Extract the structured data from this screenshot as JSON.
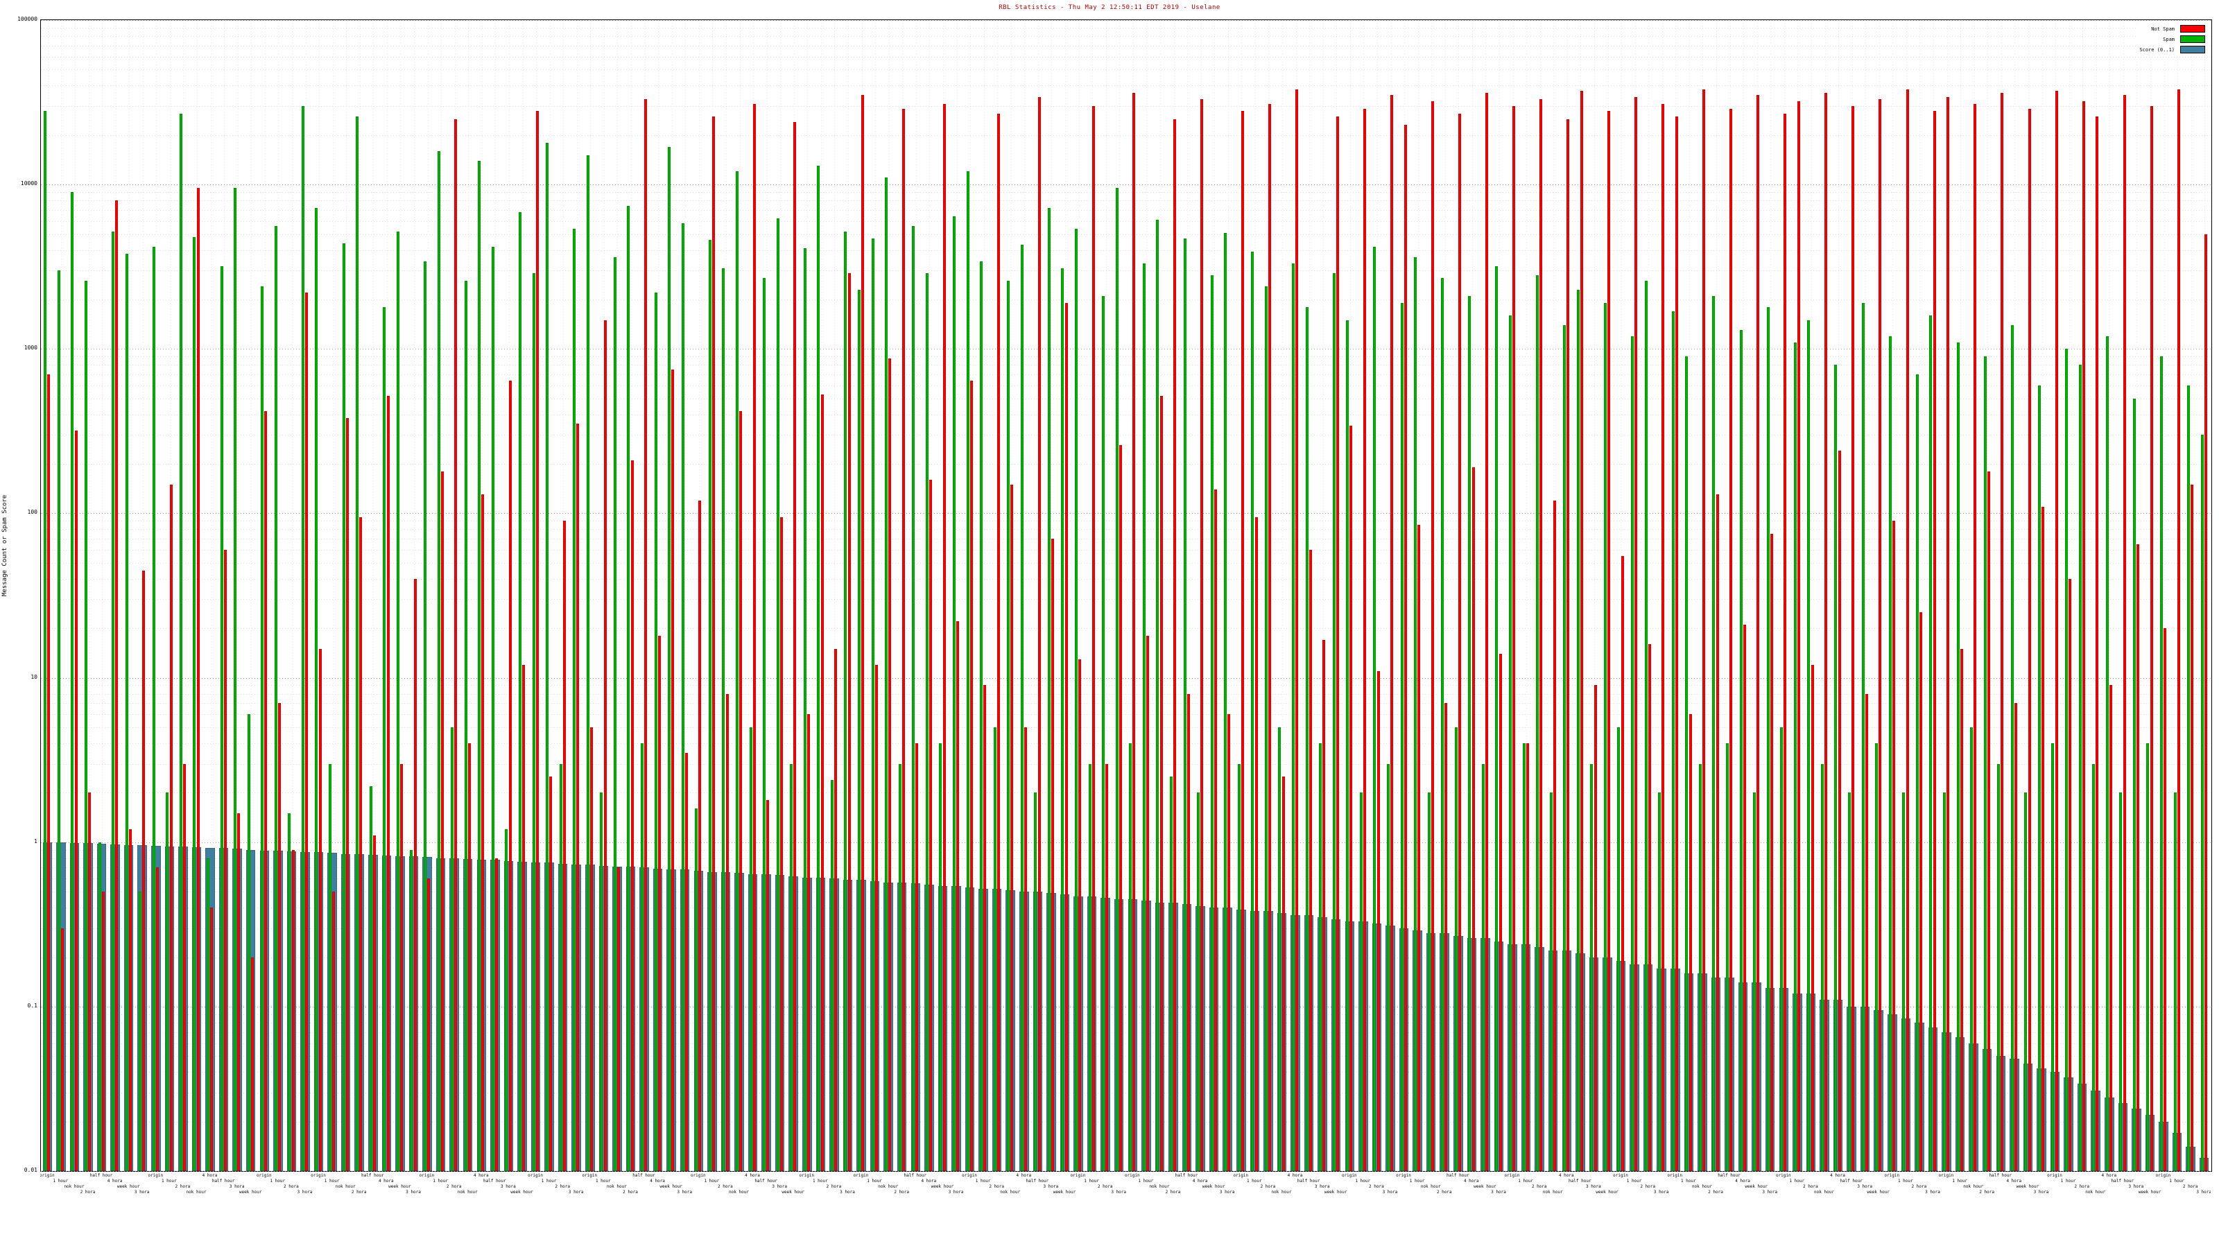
{
  "title": "RBL Statistics - Thu May  2 12:50:11 EDT 2019 - Uselane",
  "legend": [
    {
      "label": "Not Spam",
      "color": "#ff0000"
    },
    {
      "label": "Spam",
      "color": "#00b400"
    },
    {
      "label": "Score (0..1)",
      "color": "#3f7f9f"
    }
  ],
  "chart_data": {
    "type": "bar",
    "title": "RBL Statistics - Thu May  2 12:50:11 EDT 2019 - Uselane",
    "xlabel": "",
    "ylabel": "Message Count or Spam Score",
    "y_scale": "log",
    "ylim": [
      0.01,
      100000
    ],
    "grid": true,
    "legend_position": "top-right",
    "y_tick_labels": [
      "100000",
      "10000",
      "1000",
      "100",
      "10",
      "1",
      "0.1",
      "0.01"
    ],
    "y_tick_values": [
      100000,
      10000,
      1000,
      100,
      10,
      1,
      0.1,
      0.01
    ],
    "categories": [
      "origin",
      "1 hour",
      "nok hour",
      "2 hora",
      "half hour",
      "4 hora",
      "week hour",
      "3 hora",
      "origin",
      "1 hour",
      "2 hora",
      "nok hour",
      "4 hora",
      "half hour",
      "3 hora",
      "week hour",
      "origin",
      "1 hour",
      "2 hora",
      "3 hora",
      "origin",
      "1 hour",
      "nok hour",
      "2 hora",
      "half hour",
      "4 hora",
      "week hour",
      "3 hora",
      "origin",
      "1 hour",
      "2 hora",
      "nok hour",
      "4 hora",
      "half hour",
      "3 hora",
      "week hour",
      "origin",
      "1 hour",
      "2 hora",
      "3 hora",
      "origin",
      "1 hour",
      "nok hour",
      "2 hora",
      "half hour",
      "4 hora",
      "week hour",
      "3 hora",
      "origin",
      "1 hour",
      "2 hora",
      "nok hour",
      "4 hora",
      "half hour",
      "3 hora",
      "week hour",
      "origin",
      "1 hour",
      "2 hora",
      "3 hora",
      "origin",
      "1 hour",
      "nok hour",
      "2 hora",
      "half hour",
      "4 hora",
      "week hour",
      "3 hora",
      "origin",
      "1 hour",
      "2 hora",
      "nok hour",
      "4 hora",
      "half hour",
      "3 hora",
      "week hour",
      "origin",
      "1 hour",
      "2 hora",
      "3 hora",
      "origin",
      "1 hour",
      "nok hour",
      "2 hora",
      "half hour",
      "4 hora",
      "week hour",
      "3 hora",
      "origin",
      "1 hour",
      "2 hora",
      "nok hour",
      "4 hora",
      "half hour",
      "3 hora",
      "week hour",
      "origin",
      "1 hour",
      "2 hora",
      "3 hora",
      "origin",
      "1 hour",
      "nok hour",
      "2 hora",
      "half hour",
      "4 hora",
      "week hour",
      "3 hora",
      "origin",
      "1 hour",
      "2 hora",
      "nok hour",
      "4 hora",
      "half hour",
      "3 hora",
      "week hour",
      "origin",
      "1 hour",
      "2 hora",
      "3 hora",
      "origin",
      "1 hour",
      "nok hour",
      "2 hora",
      "half hour",
      "4 hora",
      "week hour",
      "3 hora",
      "origin",
      "1 hour",
      "2 hora",
      "nok hour",
      "4 hora",
      "half hour",
      "3 hora",
      "week hour",
      "origin",
      "1 hour",
      "2 hora",
      "3 hora",
      "origin",
      "1 hour",
      "nok hour",
      "2 hora",
      "half hour",
      "4 hora",
      "week hour",
      "3 hora",
      "origin",
      "1 hour",
      "2 hora",
      "nok hour",
      "4 hora",
      "half hour",
      "3 hora",
      "week hour",
      "origin",
      "1 hour",
      "2 hora",
      "3 hora"
    ],
    "series": [
      {
        "name": "Not Spam",
        "color": "#ff0000",
        "values": [
          700,
          0.3,
          320,
          2,
          0.5,
          8000,
          1.2,
          45,
          0.7,
          150,
          3,
          9500,
          0.4,
          60,
          1.5,
          0.2,
          420,
          7,
          0.9,
          2200,
          15,
          0.5,
          380,
          95,
          1.1,
          520,
          3,
          40,
          0.6,
          180,
          25000,
          4,
          130,
          0.8,
          640,
          12,
          28000,
          2.5,
          90,
          350,
          5,
          1500,
          0.7,
          210,
          33000,
          18,
          750,
          3.5,
          120,
          26000,
          8,
          420,
          31000,
          1.8,
          95,
          24000,
          6,
          530,
          15,
          2900,
          35000,
          12,
          880,
          29000,
          4,
          160,
          31000,
          22,
          640,
          9,
          27000,
          150,
          5,
          34000,
          70,
          1900,
          13,
          30000,
          3,
          260,
          36000,
          18,
          520,
          25000,
          8,
          33000,
          140,
          6,
          28000,
          95,
          31000,
          2.5,
          38000,
          60,
          17,
          26000,
          340,
          29000,
          11,
          35000,
          23000,
          85,
          32000,
          7,
          27000,
          190,
          36000,
          14,
          30000,
          4,
          33000,
          120,
          25000,
          37000,
          9,
          28000,
          55,
          34000,
          16,
          31000,
          26000,
          6,
          38000,
          130,
          29000,
          21,
          35000,
          75,
          27000,
          32000,
          12,
          36000,
          240,
          30000,
          8,
          33000,
          90,
          38000,
          25,
          28000,
          34000,
          15,
          31000,
          180,
          36000,
          7,
          29000,
          110,
          37000,
          40,
          32000,
          26000,
          9,
          35000,
          65,
          30000,
          20,
          38000,
          150,
          5000
        ]
      },
      {
        "name": "Spam",
        "color": "#00b400",
        "values": [
          28000,
          3000,
          9000,
          2600,
          1,
          5200,
          3800,
          0.5,
          4200,
          2,
          27000,
          4800,
          0.8,
          3200,
          9500,
          6,
          2400,
          5600,
          1.5,
          30000,
          7200,
          3,
          4400,
          26000,
          2.2,
          1800,
          5200,
          0.9,
          3400,
          16000,
          5,
          2600,
          14000,
          4200,
          1.2,
          6800,
          2900,
          18000,
          3,
          5400,
          15000,
          2,
          3600,
          7400,
          4,
          2200,
          17000,
          5800,
          1.6,
          4600,
          3100,
          12000,
          5,
          2700,
          6200,
          3,
          4100,
          13000,
          2.4,
          5200,
          2300,
          4700,
          11000,
          3,
          5600,
          2900,
          4,
          6400,
          12000,
          3400,
          5,
          2600,
          4300,
          2,
          7200,
          3100,
          5400,
          3,
          2100,
          9500,
          4,
          3300,
          6100,
          2.5,
          4700,
          2,
          2800,
          5100,
          3,
          3900,
          2400,
          5,
          3300,
          1800,
          4,
          2900,
          1500,
          2,
          4200,
          3,
          1900,
          3600,
          2,
          2700,
          5,
          2100,
          3,
          3200,
          1600,
          4,
          2800,
          2,
          1400,
          2300,
          3,
          1900,
          5,
          1200,
          2600,
          2,
          1700,
          900,
          3,
          2100,
          4,
          1300,
          2,
          1800,
          5,
          1100,
          1500,
          3,
          800,
          2,
          1900,
          4,
          1200,
          2,
          700,
          1600,
          2,
          1100,
          5,
          900,
          3,
          1400,
          2,
          600,
          4,
          1000,
          800,
          3,
          1200,
          2,
          500,
          4,
          900,
          2,
          600,
          300
        ]
      },
      {
        "name": "Score (0..1)",
        "color": "#3f7f9f",
        "values": [
          1.0,
          1.0,
          0.99,
          0.99,
          0.98,
          0.97,
          0.96,
          0.96,
          0.95,
          0.94,
          0.94,
          0.93,
          0.92,
          0.92,
          0.91,
          0.9,
          0.89,
          0.89,
          0.88,
          0.87,
          0.87,
          0.86,
          0.85,
          0.85,
          0.84,
          0.83,
          0.82,
          0.82,
          0.81,
          0.8,
          0.8,
          0.79,
          0.78,
          0.78,
          0.77,
          0.76,
          0.75,
          0.75,
          0.74,
          0.73,
          0.73,
          0.72,
          0.71,
          0.71,
          0.7,
          0.69,
          0.68,
          0.68,
          0.67,
          0.66,
          0.66,
          0.65,
          0.64,
          0.64,
          0.63,
          0.62,
          0.61,
          0.61,
          0.6,
          0.59,
          0.59,
          0.58,
          0.57,
          0.57,
          0.56,
          0.55,
          0.54,
          0.54,
          0.53,
          0.52,
          0.52,
          0.51,
          0.5,
          0.5,
          0.49,
          0.48,
          0.47,
          0.47,
          0.46,
          0.45,
          0.45,
          0.44,
          0.43,
          0.43,
          0.42,
          0.41,
          0.4,
          0.4,
          0.39,
          0.38,
          0.38,
          0.37,
          0.36,
          0.36,
          0.35,
          0.34,
          0.33,
          0.33,
          0.32,
          0.31,
          0.3,
          0.29,
          0.28,
          0.28,
          0.27,
          0.26,
          0.26,
          0.25,
          0.24,
          0.24,
          0.23,
          0.22,
          0.22,
          0.21,
          0.2,
          0.2,
          0.19,
          0.18,
          0.18,
          0.17,
          0.17,
          0.16,
          0.16,
          0.15,
          0.15,
          0.14,
          0.14,
          0.13,
          0.13,
          0.12,
          0.12,
          0.11,
          0.11,
          0.1,
          0.1,
          0.095,
          0.09,
          0.085,
          0.08,
          0.075,
          0.07,
          0.065,
          0.06,
          0.055,
          0.05,
          0.048,
          0.045,
          0.042,
          0.04,
          0.037,
          0.034,
          0.031,
          0.028,
          0.026,
          0.024,
          0.022,
          0.02,
          0.017,
          0.014,
          0.012
        ]
      }
    ]
  }
}
